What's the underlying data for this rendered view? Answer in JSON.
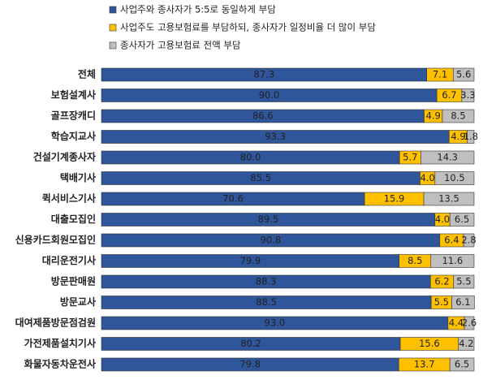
{
  "chart_data": {
    "type": "stacked-barh",
    "categories": [
      "전체",
      "보험설계사",
      "골프장캐디",
      "학습지교사",
      "건설기계종사자",
      "택배기사",
      "퀵서비스기사",
      "대출모집인",
      "신용카드회원모집인",
      "대리운전기사",
      "방문판매원",
      "방문교사",
      "대여제품방문점검원",
      "가전제품설치기사",
      "화물자동차운전사"
    ],
    "xlim": [
      0,
      100
    ],
    "legend": "top",
    "series": [
      {
        "name": "사업주와 종사자가 5:5로 동일하게 부담",
        "color": "#2f559a",
        "values": [
          87.3,
          90.0,
          86.6,
          93.3,
          80.0,
          85.5,
          70.6,
          89.5,
          90.8,
          79.9,
          88.3,
          88.5,
          93.0,
          80.2,
          79.8
        ],
        "value_labels": [
          "87.3",
          "90.0",
          "86.6",
          "93.3",
          "80.0",
          "85.5",
          "70.6",
          "89.5",
          "90.8",
          "79.9",
          "88.3",
          "88.5",
          "93.0",
          "80.2",
          "79.8"
        ]
      },
      {
        "name": "사업주도 고용보험료를 부담하되, 종사자가 일정비율 더 많이 부담",
        "color": "#ffc000",
        "values": [
          7.1,
          6.7,
          4.9,
          4.9,
          5.7,
          4.0,
          15.9,
          4.0,
          6.4,
          8.5,
          6.2,
          5.5,
          4.4,
          15.6,
          13.7
        ],
        "value_labels": [
          "7.1",
          "6.7",
          "4.9",
          "4.9",
          "5.7",
          "4.0",
          "15.9",
          "4.0",
          "6.4",
          "8.5",
          "6.2",
          "5.5",
          "4.4",
          "15.6",
          "13.7"
        ]
      },
      {
        "name": "종사자가 고용보험료 전액 부담",
        "color": "#bfbfbf",
        "values": [
          5.6,
          3.3,
          8.5,
          1.8,
          14.3,
          10.5,
          13.5,
          6.5,
          2.8,
          11.6,
          5.5,
          6.1,
          2.6,
          4.2,
          6.5
        ],
        "value_labels": [
          "5.6",
          "3.3",
          "8.5",
          "1.8",
          "14.3",
          "10.5",
          "13.5",
          "6.5",
          "2.8",
          "11.6",
          "5.5",
          "6.1",
          "2.6",
          "4.2",
          "6.5"
        ]
      }
    ]
  }
}
